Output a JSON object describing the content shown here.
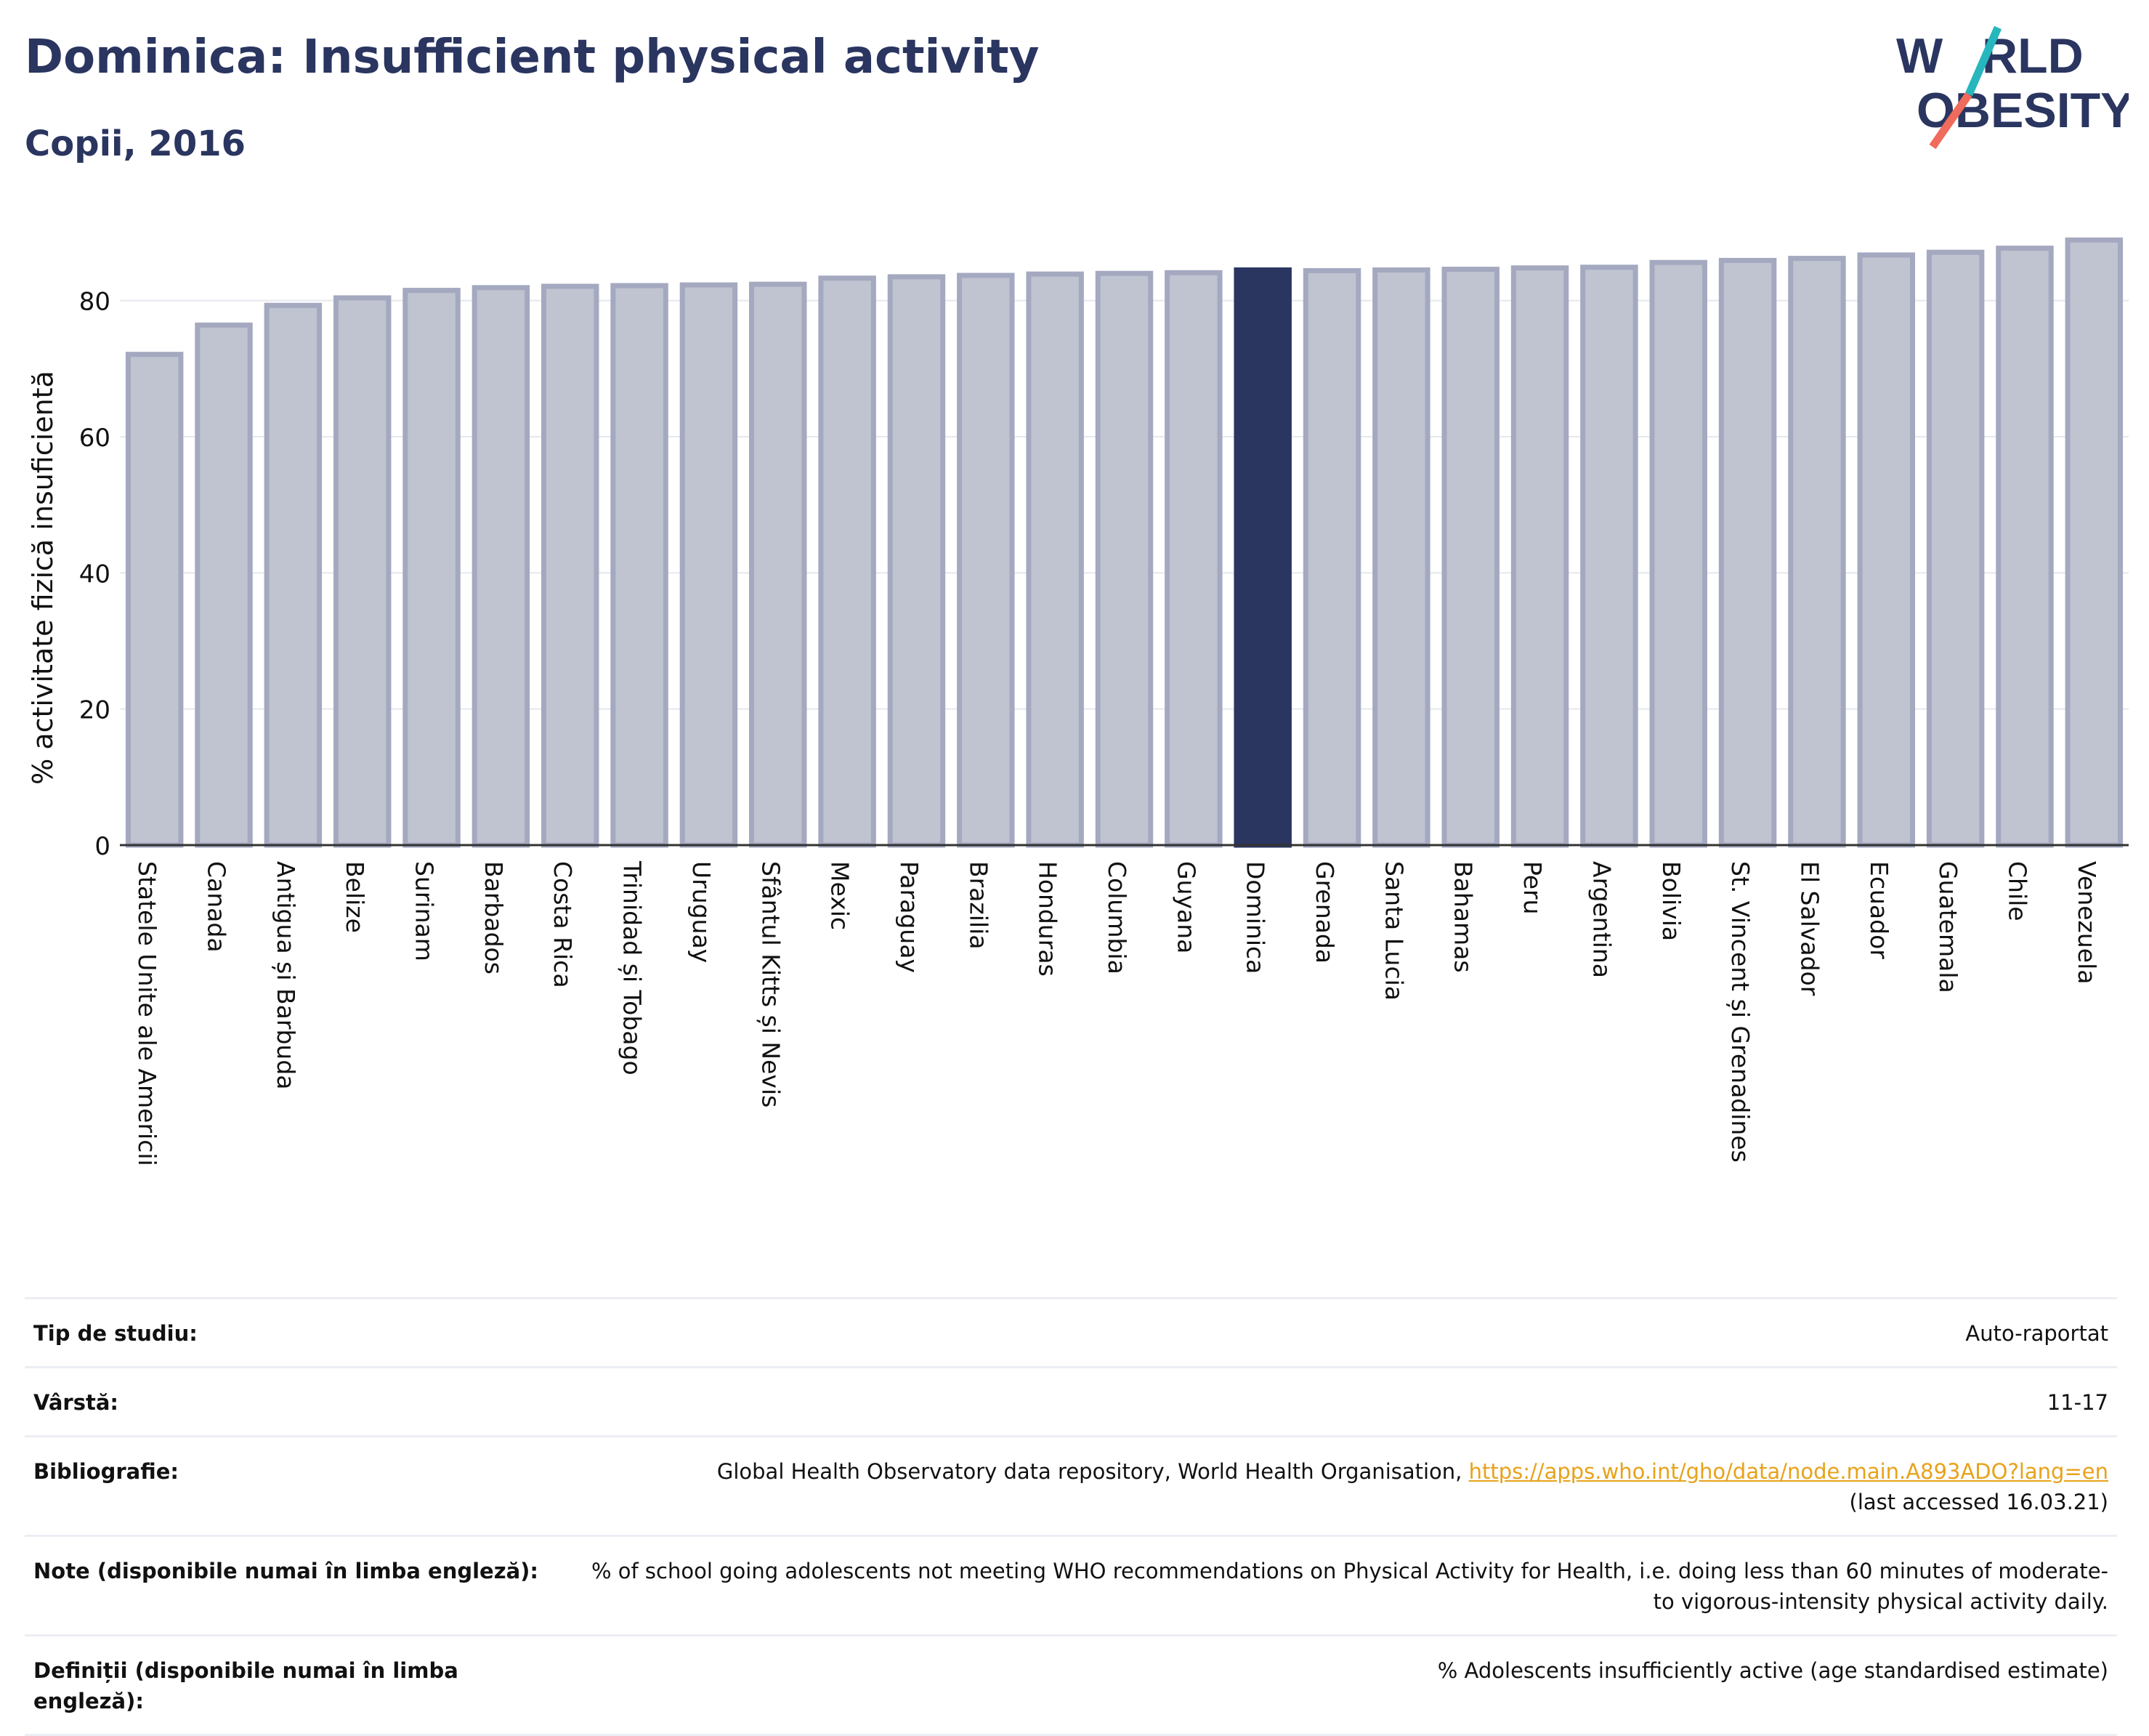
{
  "title": "Dominica: Insufficient physical activity",
  "subtitle": "Copii, 2016",
  "logo": {
    "line1": "W RLD",
    "line2": "OBESITY",
    "text": "WORLD OBESITY"
  },
  "colors": {
    "title": "#2a3560",
    "highlight": "#2a3560",
    "bar": "#c0c3d0",
    "bar_edge": "#a4a9c0",
    "grid": "#e6e8ef",
    "link": "#e8a21a",
    "logo_teal": "#27b6bd",
    "logo_coral": "#ef6b5b"
  },
  "chart_data": {
    "type": "bar",
    "ylabel": "% activitate fizică insuficientă",
    "xlabel": "",
    "ylim": [
      0,
      90
    ],
    "yticks": [
      0,
      20,
      40,
      60,
      80
    ],
    "grid": true,
    "highlight": "Dominica",
    "categories": [
      "Statele Unite ale Americii",
      "Canada",
      "Antigua și Barbuda",
      "Belize",
      "Surinam",
      "Barbados",
      "Costa Rica",
      "Trinidad și Tobago",
      "Uruguay",
      "Sfântul Kitts și Nevis",
      "Mexic",
      "Paraguay",
      "Brazilia",
      "Honduras",
      "Columbia",
      "Guyana",
      "Dominica",
      "Grenada",
      "Santa Lucia",
      "Bahamas",
      "Peru",
      "Argentina",
      "Bolivia",
      "St. Vincent și Grenadines",
      "El Salvador",
      "Ecuador",
      "Guatemala",
      "Chile",
      "Venezuela"
    ],
    "values": [
      72.1,
      76.4,
      79.3,
      80.4,
      81.5,
      81.9,
      82.1,
      82.2,
      82.3,
      82.4,
      83.3,
      83.5,
      83.7,
      83.9,
      84.0,
      84.1,
      84.5,
      84.4,
      84.5,
      84.6,
      84.8,
      84.9,
      85.6,
      85.9,
      86.2,
      86.7,
      87.1,
      87.7,
      88.9
    ]
  },
  "details": [
    {
      "label": "Tip de studiu:",
      "value": "Auto-raportat"
    },
    {
      "label": "Vârstă:",
      "value": "11-17"
    },
    {
      "label": "Bibliografie:",
      "value_prefix": "Global Health Observatory data repository, World Health Organisation, ",
      "link": "https://apps.who.int/gho/data/node.main.A893ADO?lang=en",
      "value_suffix": "(last accessed 16.03.21)"
    },
    {
      "label": "Note (disponibile numai în limba engleză):",
      "value": "% of school going adolescents not meeting WHO recommendations on Physical Activity for Health, i.e. doing less than 60 minutes of moderate- to vigorous-intensity physical activity daily."
    },
    {
      "label": "Definiții (disponibile numai în limba engleză):",
      "value": "% Adolescents insufficiently active (age standardised estimate)"
    }
  ]
}
